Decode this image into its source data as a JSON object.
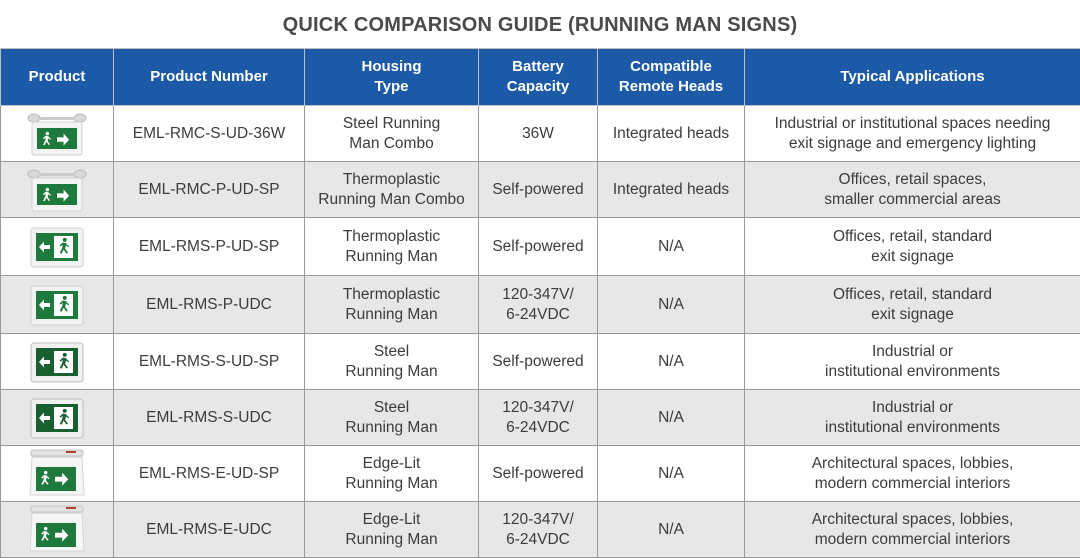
{
  "title": "QUICK COMPARISON GUIDE (RUNNING MAN SIGNS)",
  "headers": {
    "product": "Product",
    "number": "Product Number",
    "housing": "Housing Type",
    "battery": "Battery Capacity",
    "remote": "Compatible Remote Heads",
    "applications": "Typical Applications"
  },
  "rows": [
    {
      "image": "combo-sign-with-lamps",
      "number": "EML-RMC-S-UD-36W",
      "housing_1": "Steel Running",
      "housing_2": "Man Combo",
      "battery_1": "36W",
      "battery_2": "",
      "remote": "Integrated heads",
      "app_1": "Industrial or institutional spaces needing",
      "app_2": "exit signage and emergency lighting"
    },
    {
      "image": "combo-sign-with-lamps",
      "number": "EML-RMC-P-UD-SP",
      "housing_1": "Thermoplastic",
      "housing_2": "Running Man Combo",
      "battery_1": "Self-powered",
      "battery_2": "",
      "remote": "Integrated heads",
      "app_1": "Offices, retail spaces,",
      "app_2": "smaller commercial areas"
    },
    {
      "image": "running-man-sign",
      "number": "EML-RMS-P-UD-SP",
      "housing_1": "Thermoplastic",
      "housing_2": "Running Man",
      "battery_1": "Self-powered",
      "battery_2": "",
      "remote": "N/A",
      "app_1": "Offices, retail, standard",
      "app_2": "exit signage"
    },
    {
      "image": "running-man-sign",
      "number": "EML-RMS-P-UDC",
      "housing_1": "Thermoplastic",
      "housing_2": "Running Man",
      "battery_1": "120-347V/",
      "battery_2": "6-24VDC",
      "remote": "N/A",
      "app_1": "Offices, retail, standard",
      "app_2": "exit signage"
    },
    {
      "image": "running-man-sign-dark",
      "number": "EML-RMS-S-UD-SP",
      "housing_1": "Steel",
      "housing_2": "Running Man",
      "battery_1": "Self-powered",
      "battery_2": "",
      "remote": "N/A",
      "app_1": "Industrial or",
      "app_2": "institutional environments"
    },
    {
      "image": "running-man-sign-dark",
      "number": "EML-RMS-S-UDC",
      "housing_1": "Steel",
      "housing_2": "Running Man",
      "battery_1": "120-347V/",
      "battery_2": "6-24VDC",
      "remote": "N/A",
      "app_1": "Industrial or",
      "app_2": "institutional environments"
    },
    {
      "image": "edge-lit-sign",
      "number": "EML-RMS-E-UD-SP",
      "housing_1": "Edge-Lit",
      "housing_2": "Running Man",
      "battery_1": "Self-powered",
      "battery_2": "",
      "remote": "N/A",
      "app_1": "Architectural spaces, lobbies,",
      "app_2": "modern commercial interiors"
    },
    {
      "image": "edge-lit-sign",
      "number": "EML-RMS-E-UDC",
      "housing_1": "Edge-Lit",
      "housing_2": "Running Man",
      "battery_1": "120-347V/",
      "battery_2": "6-24VDC",
      "remote": "N/A",
      "app_1": "Architectural spaces, lobbies,",
      "app_2": "modern commercial interiors"
    }
  ],
  "colors": {
    "header_bg": "#1c59a6",
    "header_text": "#ffffff",
    "sign_green": "#1e7a3c",
    "alt_row": "#e7e7e7"
  }
}
